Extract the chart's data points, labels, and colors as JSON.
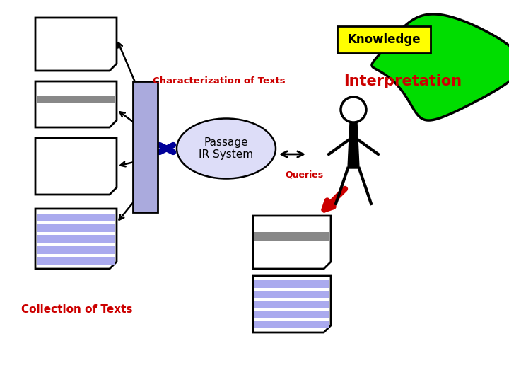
{
  "bg_color": "#ffffff",
  "knowledge_box_color": "#ffff00",
  "knowledge_text": "Knowledge",
  "interpretation_text": "Interpretation",
  "interpretation_color": "#cc0000",
  "green_blob_color": "#00dd00",
  "passage_ir_ellipse_color": "#ddddf8",
  "passage_ir_text": "Passage\nIR System",
  "blue_rect_color": "#aaaadd",
  "queries_text": "Queries",
  "queries_color": "#cc0000",
  "char_text": "Characterization of Texts",
  "char_color": "#cc0000",
  "collection_text": "Collection of Texts",
  "collection_color": "#cc0000",
  "doc_border_color": "#000000",
  "doc_fill_color": "#ffffff",
  "gray_stripe_color": "#888888",
  "blue_stripe_color": "#aaaaee",
  "red_arrow_color": "#cc0000",
  "dark_blue_arrow_color": "#000099"
}
